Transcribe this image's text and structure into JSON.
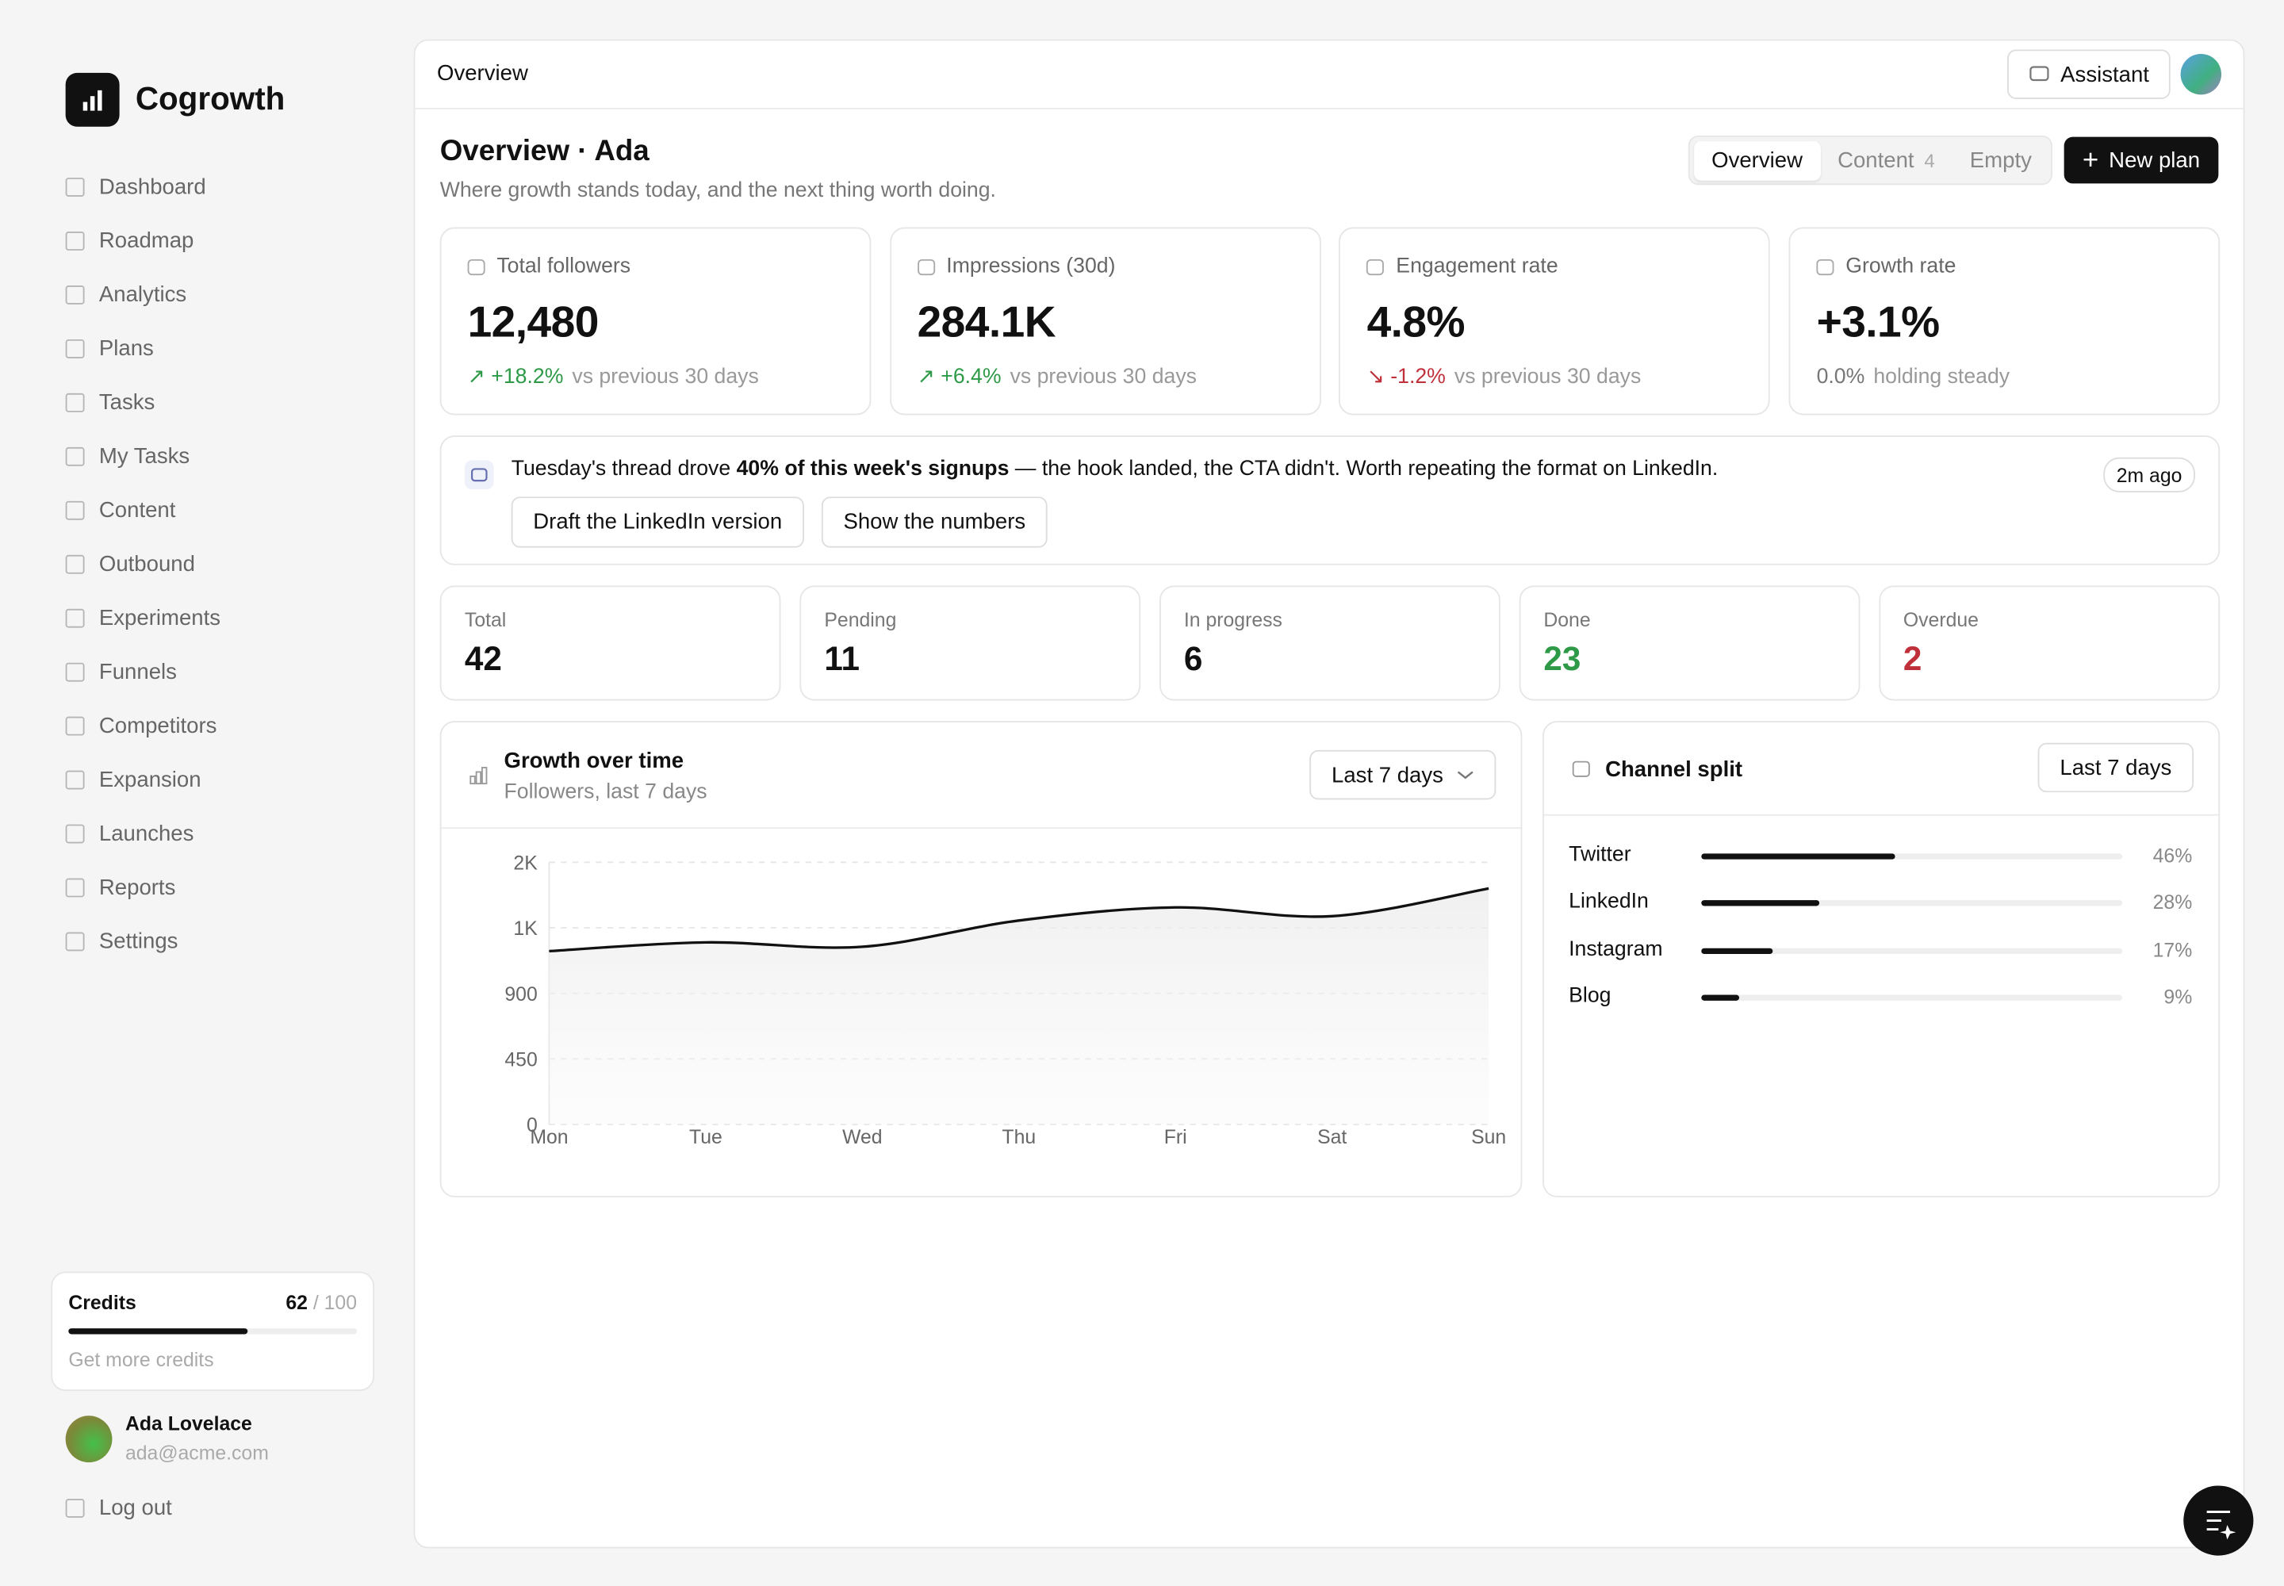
{
  "sidebar": {
    "brand": "Cogrowth",
    "nav": [
      "Dashboard",
      "Roadmap",
      "Analytics",
      "Plans",
      "Tasks",
      "My Tasks",
      "Content",
      "Outbound",
      "Experiments",
      "Funnels",
      "Competitors",
      "Expansion",
      "Launches",
      "Reports",
      "Settings"
    ],
    "credits": {
      "label": "Credits",
      "used": 62,
      "total": 100,
      "total_label": "/ 100",
      "link": "Get more credits"
    },
    "user": {
      "name": "Ada Lovelace",
      "email": "ada@acme.com"
    },
    "logout": "Log out"
  },
  "header": {
    "title": "Overview",
    "assistant": "Assistant"
  },
  "page": {
    "title": "Overview · Ada",
    "subtitle": "Where growth stands today, and the next thing worth doing.",
    "tabs": [
      {
        "label": "Overview"
      },
      {
        "label": "Content",
        "count": "4"
      },
      {
        "label": "Empty"
      }
    ],
    "new_plan": "New plan"
  },
  "kpis": [
    {
      "label": "Total followers",
      "value": "12,480",
      "delta": "↗ +18.2%",
      "delta_color": "#2e9a47",
      "note": "vs previous 30 days"
    },
    {
      "label": "Impressions (30d)",
      "value": "284.1K",
      "delta": "↗ +6.4%",
      "delta_color": "#2e9a47",
      "note": "vs previous 30 days"
    },
    {
      "label": "Engagement rate",
      "value": "4.8%",
      "delta": "↘ -1.2%",
      "delta_color": "#c0303a",
      "note": "vs previous 30 days"
    },
    {
      "label": "Growth rate",
      "value": "+3.1%",
      "delta": "0.0%",
      "delta_color": "#777",
      "note": "holding steady"
    }
  ],
  "insight": {
    "text_before": "Tuesday's thread drove ",
    "bold": "40% of this week's signups",
    "text_after": " — the hook landed, the CTA didn't. Worth repeating the format on LinkedIn.",
    "time": "2m ago",
    "actions": [
      "Draft the LinkedIn version",
      "Show the numbers"
    ]
  },
  "stats": [
    {
      "label": "Total",
      "value": "42",
      "color": "#111"
    },
    {
      "label": "Pending",
      "value": "11",
      "color": "#111"
    },
    {
      "label": "In progress",
      "value": "6",
      "color": "#111"
    },
    {
      "label": "Done",
      "value": "23",
      "color": "#2e9a47"
    },
    {
      "label": "Overdue",
      "value": "2",
      "color": "#c0303a"
    }
  ],
  "chart_data": [
    {
      "type": "line",
      "title": "Growth over time",
      "subtitle": "Followers, last 7 days",
      "range": "Last 7 days",
      "categories": [
        "Mon",
        "Tue",
        "Wed",
        "Thu",
        "Fri",
        "Sat",
        "Sun"
      ],
      "values": [
        1190,
        1250,
        1220,
        1400,
        1490,
        1430,
        1620
      ],
      "color": "#111111",
      "ylim": [
        0,
        1800
      ],
      "yticks": [
        0,
        450,
        900,
        {
          "value": 1350,
          "label": "1K"
        },
        {
          "value": 1800,
          "label": "2K"
        }
      ],
      "grid": true
    },
    {
      "type": "hbar",
      "title": "Channel split",
      "range": "Last 7 days",
      "categories": [
        "Twitter",
        "LinkedIn",
        "Instagram",
        "Blog"
      ],
      "values": [
        46,
        28,
        17,
        9
      ],
      "value_labels": [
        "46%",
        "28%",
        "17%",
        "9%"
      ],
      "xlim": [
        0,
        100
      ],
      "color": "#111111"
    }
  ]
}
